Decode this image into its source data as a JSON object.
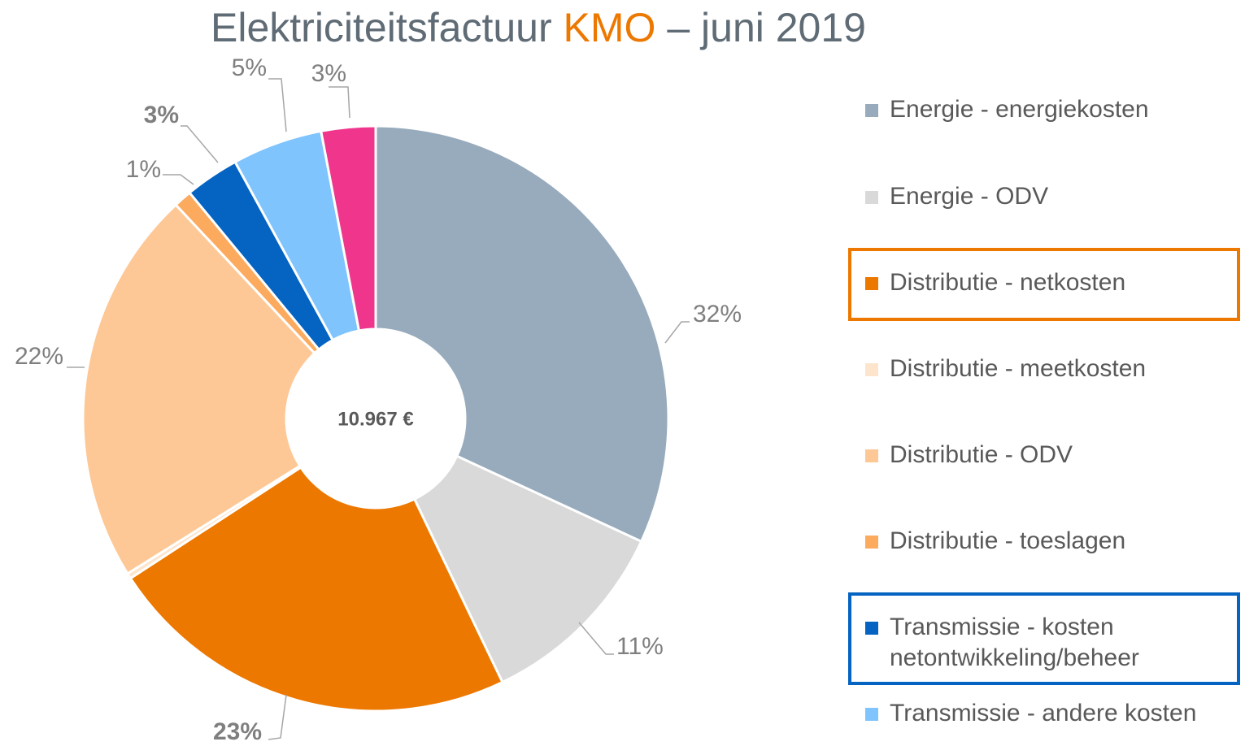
{
  "chart_data": {
    "type": "donut",
    "title": "Elektriciteitsfactuur",
    "title_highlight": "KMO",
    "title_suffix": "– juni 2019",
    "title_color": "#5f6b75",
    "title_highlight_color": "#ed7800",
    "center_label": "10.967 €",
    "categories": [
      "Energie - energiekosten",
      "Energie - ODV",
      "Distributie - netkosten",
      "Distributie - meetkosten",
      "Distributie - ODV",
      "Distributie - toeslagen",
      "Transmissie - kosten netontwikkeling/beheer",
      "Transmissie - andere kosten",
      null
    ],
    "values": [
      32,
      11,
      23,
      0.3,
      22,
      1,
      3,
      5,
      3
    ],
    "value_labels": [
      "32%",
      "11%",
      "23%",
      null,
      "22%",
      "1%",
      "3%",
      "5%",
      "3%"
    ],
    "colors": [
      "#97abbd",
      "#d9d9d9",
      "#ed7800",
      "#fde4cc",
      "#fdc895",
      "#fbaa5e",
      "#0563c1",
      "#7fc4fc",
      "#f0368c"
    ],
    "value_label_colors": [
      "#7f7f7f",
      "#7f7f7f",
      "#ed7800",
      null,
      "#7f7f7f",
      "#7f7f7f",
      "#0563c1",
      "#7f7f7f",
      "#7f7f7f"
    ],
    "legend_highlight": [
      {
        "index": 2,
        "color": "#ed7800"
      },
      {
        "index": 6,
        "color": "#0563c1"
      }
    ]
  }
}
